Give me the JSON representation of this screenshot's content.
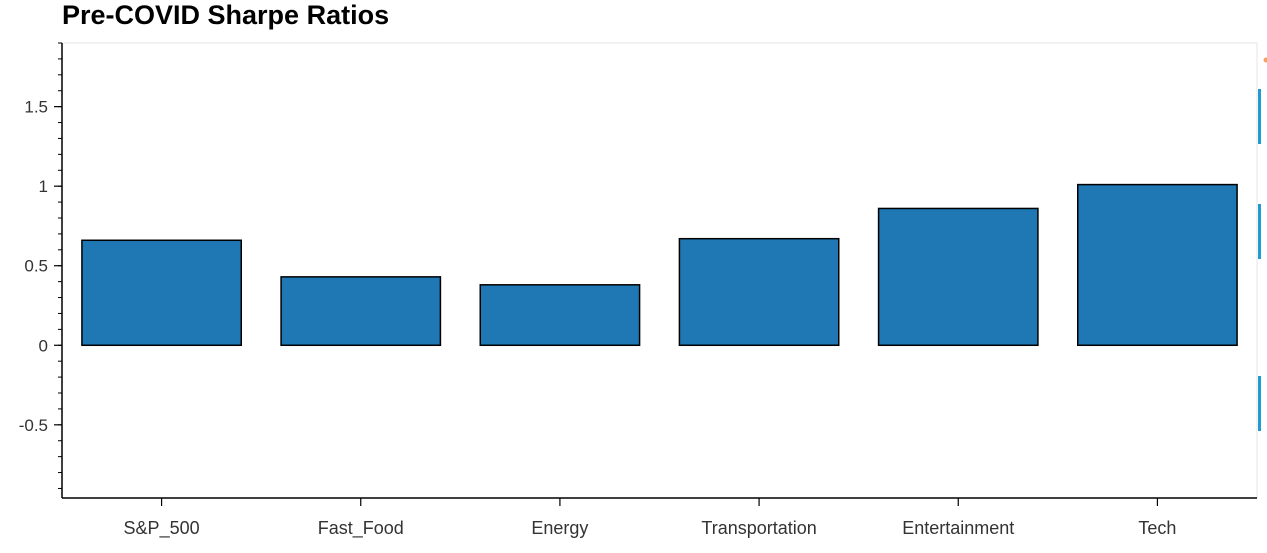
{
  "chart_data": {
    "type": "bar",
    "title": "Pre-COVID Sharpe Ratios",
    "xlabel": "",
    "ylabel": "",
    "categories": [
      "S&P_500",
      "Fast_Food",
      "Energy",
      "Transportation",
      "Entertainment",
      "Tech"
    ],
    "values": [
      0.66,
      0.43,
      0.38,
      0.67,
      0.86,
      1.01
    ],
    "ylim": [
      -0.96,
      1.9
    ],
    "yticks": [
      -0.5,
      0,
      0.5,
      1,
      1.5
    ],
    "ytick_labels": [
      "-0.5",
      "0",
      "0.5",
      "1",
      "1.5"
    ],
    "grid": false,
    "legend": "none",
    "bar_color": "#1f77b4",
    "bar_edge_color": "#000000",
    "toolbar_color": "#1f9bd1"
  }
}
